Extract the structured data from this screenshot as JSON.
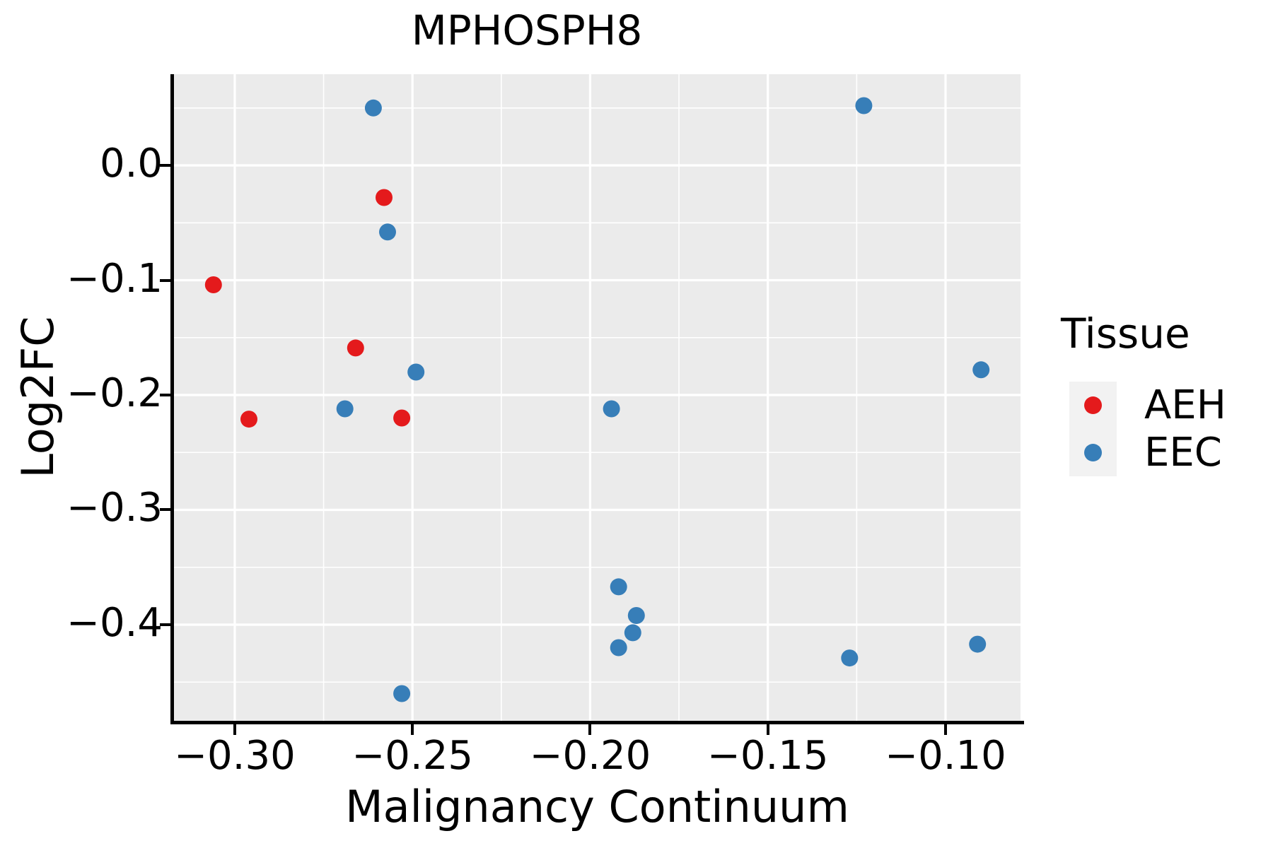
{
  "title": "MPHOSPH8",
  "axes": {
    "x": {
      "label": "Malignancy Continuum",
      "range": [
        -0.3171,
        -0.0789
      ],
      "ticks": [
        {
          "value": -0.3,
          "label": "−0.30"
        },
        {
          "value": -0.25,
          "label": "−0.25"
        },
        {
          "value": -0.2,
          "label": "−0.20"
        },
        {
          "value": -0.15,
          "label": "−0.15"
        },
        {
          "value": -0.1,
          "label": "−0.10"
        }
      ],
      "minor_ticks": [
        -0.275,
        -0.225,
        -0.175,
        -0.125
      ]
    },
    "y": {
      "label": "Log2FC",
      "range": [
        -0.4837,
        0.0794
      ],
      "ticks": [
        {
          "value": 0.0,
          "label": "0.0"
        },
        {
          "value": -0.1,
          "label": "−0.1"
        },
        {
          "value": -0.2,
          "label": "−0.2"
        },
        {
          "value": -0.3,
          "label": "−0.3"
        },
        {
          "value": -0.4,
          "label": "−0.4"
        }
      ],
      "minor_ticks": [
        0.05,
        -0.05,
        -0.15,
        -0.25,
        -0.35,
        -0.45
      ]
    }
  },
  "legend": {
    "title": "Tissue",
    "entries": [
      {
        "label": "AEH",
        "color": "#E41A1C"
      },
      {
        "label": "EEC",
        "color": "#377EB8"
      }
    ]
  },
  "colors": {
    "panel_background": "#EBEBEB",
    "gridline": "#FFFFFF",
    "axis_line": "#000000",
    "legend_key_background": "#F2F2F2",
    "aeh": "#E41A1C",
    "eec": "#377EB8"
  },
  "chart_data": {
    "type": "scatter",
    "title": "MPHOSPH8",
    "xlabel": "Malignancy Continuum",
    "ylabel": "Log2FC",
    "xlim": [
      -0.3171,
      -0.0789
    ],
    "ylim": [
      -0.4837,
      0.0794
    ],
    "grid": true,
    "legend_position": "right",
    "legend_title": "Tissue",
    "series": [
      {
        "name": "AEH",
        "color": "#E41A1C",
        "points": [
          [
            -0.306,
            -0.104
          ],
          [
            -0.258,
            -0.028
          ],
          [
            -0.266,
            -0.159
          ],
          [
            -0.296,
            -0.221
          ],
          [
            -0.253,
            -0.22
          ]
        ]
      },
      {
        "name": "EEC",
        "color": "#377EB8",
        "points": [
          [
            -0.261,
            0.05
          ],
          [
            -0.123,
            0.052
          ],
          [
            -0.257,
            -0.058
          ],
          [
            -0.249,
            -0.18
          ],
          [
            -0.269,
            -0.212
          ],
          [
            -0.194,
            -0.212
          ],
          [
            -0.09,
            -0.178
          ],
          [
            -0.192,
            -0.367
          ],
          [
            -0.187,
            -0.392
          ],
          [
            -0.188,
            -0.407
          ],
          [
            -0.192,
            -0.42
          ],
          [
            -0.127,
            -0.429
          ],
          [
            -0.091,
            -0.417
          ],
          [
            -0.253,
            -0.46
          ]
        ]
      }
    ]
  }
}
